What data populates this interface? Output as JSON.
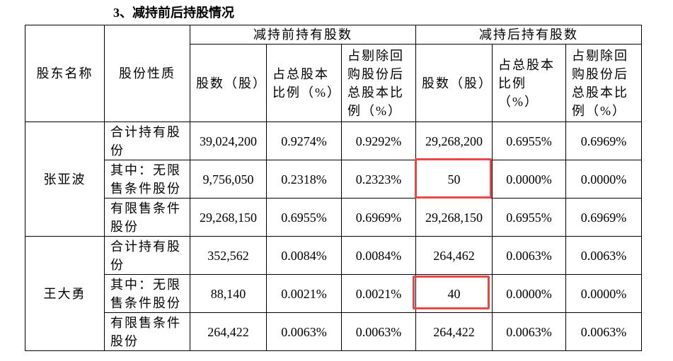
{
  "title": "3、减持前后持股情况",
  "table": {
    "header": {
      "shareholder": "股东名称",
      "nature": "股份性质",
      "before": "减持前持有股数",
      "after": "减持后持有股数",
      "before_cols": [
        "股数（股）",
        "占总股本比例（%）",
        "占剔除回购股份后总股本比例（%）"
      ],
      "after_cols": [
        "股数（股）",
        "占总股本比例（%）",
        "占剔除回购股份后总股本比例（%）"
      ]
    },
    "groups": [
      {
        "name": "张亚波",
        "rows": [
          {
            "type": "合计持有股份",
            "values": [
              "39,024,200",
              "0.9274%",
              "0.9292%",
              "29,268,200",
              "0.6955%",
              "0.6969%"
            ]
          },
          {
            "type": "其中：无限售条件股份",
            "values": [
              "9,756,050",
              "0.2318%",
              "0.2323%",
              "50",
              "0.0000%",
              "0.0000%"
            ]
          },
          {
            "type": "有限售条件股份",
            "values": [
              "29,268,150",
              "0.6955%",
              "0.6969%",
              "29,268,150",
              "0.6955%",
              "0.6969%"
            ]
          }
        ]
      },
      {
        "name": "王大勇",
        "rows": [
          {
            "type": "合计持有股份",
            "values": [
              "352,562",
              "0.0084%",
              "0.0084%",
              "264,462",
              "0.0063%",
              "0.0063%"
            ]
          },
          {
            "type": "其中：无限售条件股份",
            "values": [
              "88,140",
              "0.0021%",
              "0.0021%",
              "40",
              "0.0000%",
              "0.0000%"
            ]
          },
          {
            "type": "有限售条件股份",
            "values": [
              "264,422",
              "0.0063%",
              "0.0063%",
              "264,422",
              "0.0063%",
              "0.0063%"
            ]
          }
        ]
      }
    ]
  }
}
